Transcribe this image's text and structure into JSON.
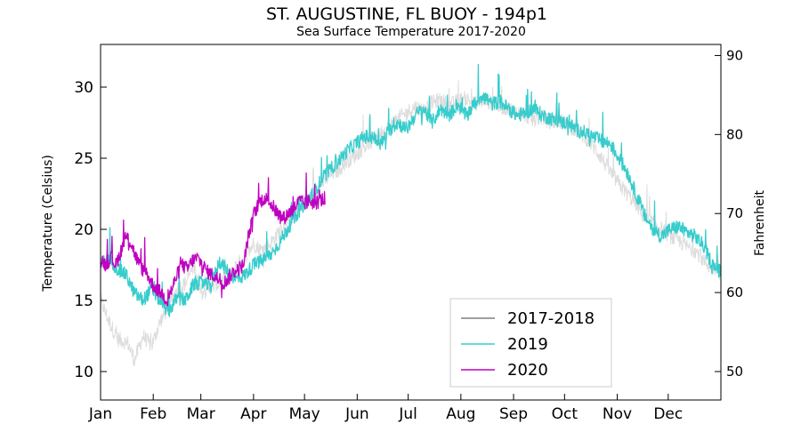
{
  "chart_data": {
    "type": "line",
    "title": "ST. AUGUSTINE, FL BUOY - 194p1",
    "subtitle": "Sea Surface Temperature 2017-2020",
    "ylabel": "Temperature (Celsius)",
    "ylabel_right": "Fahrenheit",
    "xlabel": "",
    "ylim": [
      8,
      33
    ],
    "y_ticks": [
      10,
      15,
      20,
      25,
      30
    ],
    "y_right_ticks": [
      50,
      60,
      70,
      80,
      90
    ],
    "x_categories": [
      "Jan",
      "Feb",
      "Mar",
      "Apr",
      "May",
      "Jun",
      "Jul",
      "Aug",
      "Sep",
      "Oct",
      "Nov",
      "Dec"
    ],
    "x_range_days": [
      0,
      365
    ],
    "legend_position": "bottom-right",
    "series": [
      {
        "name": "2017-2018",
        "color": "#dddddd",
        "legend_color": "#808080",
        "points": [
          [
            0,
            15.0
          ],
          [
            5,
            13.5
          ],
          [
            10,
            12.3
          ],
          [
            16,
            12.0
          ],
          [
            20,
            10.8
          ],
          [
            25,
            12.5
          ],
          [
            30,
            11.8
          ],
          [
            35,
            13.5
          ],
          [
            40,
            14.5
          ],
          [
            45,
            15.8
          ],
          [
            50,
            16.2
          ],
          [
            55,
            17.5
          ],
          [
            60,
            15.5
          ],
          [
            65,
            16.0
          ],
          [
            70,
            16.2
          ],
          [
            75,
            16.5
          ],
          [
            80,
            17.5
          ],
          [
            85,
            18.0
          ],
          [
            90,
            19.0
          ],
          [
            95,
            18.5
          ],
          [
            100,
            19.0
          ],
          [
            105,
            19.8
          ],
          [
            110,
            20.5
          ],
          [
            115,
            21.0
          ],
          [
            120,
            21.8
          ],
          [
            125,
            22.5
          ],
          [
            130,
            23.2
          ],
          [
            135,
            23.8
          ],
          [
            140,
            24.2
          ],
          [
            145,
            24.8
          ],
          [
            150,
            25.2
          ],
          [
            155,
            25.8
          ],
          [
            160,
            26.2
          ],
          [
            165,
            26.8
          ],
          [
            170,
            27.2
          ],
          [
            175,
            27.8
          ],
          [
            180,
            28.2
          ],
          [
            185,
            28.6
          ],
          [
            190,
            28.4
          ],
          [
            195,
            28.9
          ],
          [
            200,
            29.1
          ],
          [
            205,
            28.7
          ],
          [
            210,
            29.0
          ],
          [
            215,
            29.2
          ],
          [
            220,
            28.8
          ],
          [
            225,
            29.1
          ],
          [
            230,
            28.9
          ],
          [
            235,
            28.6
          ],
          [
            240,
            28.5
          ],
          [
            245,
            28.2
          ],
          [
            250,
            28.0
          ],
          [
            255,
            27.7
          ],
          [
            260,
            27.9
          ],
          [
            265,
            27.5
          ],
          [
            270,
            27.7
          ],
          [
            275,
            27.3
          ],
          [
            280,
            27.0
          ],
          [
            285,
            26.5
          ],
          [
            290,
            25.8
          ],
          [
            295,
            25.0
          ],
          [
            300,
            24.0
          ],
          [
            305,
            23.2
          ],
          [
            310,
            22.5
          ],
          [
            315,
            21.8
          ],
          [
            320,
            20.8
          ],
          [
            325,
            20.5
          ],
          [
            330,
            20.0
          ],
          [
            335,
            19.5
          ],
          [
            340,
            19.2
          ],
          [
            345,
            18.8
          ],
          [
            350,
            18.5
          ],
          [
            355,
            17.8
          ],
          [
            360,
            17.2
          ],
          [
            365,
            17.0
          ]
        ]
      },
      {
        "name": "2019",
        "color": "#38cccc",
        "legend_color": "#38cccc",
        "points": [
          [
            0,
            17.5
          ],
          [
            5,
            18.0
          ],
          [
            10,
            17.2
          ],
          [
            15,
            16.8
          ],
          [
            20,
            15.5
          ],
          [
            25,
            15.0
          ],
          [
            30,
            15.8
          ],
          [
            35,
            15.0
          ],
          [
            40,
            14.2
          ],
          [
            45,
            15.2
          ],
          [
            50,
            15.0
          ],
          [
            55,
            16.2
          ],
          [
            60,
            16.2
          ],
          [
            65,
            16.0
          ],
          [
            70,
            17.8
          ],
          [
            75,
            17.0
          ],
          [
            80,
            16.5
          ],
          [
            85,
            16.8
          ],
          [
            90,
            17.5
          ],
          [
            95,
            17.8
          ],
          [
            100,
            18.2
          ],
          [
            105,
            19.0
          ],
          [
            110,
            20.0
          ],
          [
            115,
            21.0
          ],
          [
            120,
            21.8
          ],
          [
            125,
            22.5
          ],
          [
            130,
            23.5
          ],
          [
            135,
            24.2
          ],
          [
            140,
            24.8
          ],
          [
            145,
            25.5
          ],
          [
            150,
            26.0
          ],
          [
            155,
            26.5
          ],
          [
            160,
            26.5
          ],
          [
            165,
            26.0
          ],
          [
            170,
            27.0
          ],
          [
            175,
            27.5
          ],
          [
            180,
            27.0
          ],
          [
            185,
            28.0
          ],
          [
            190,
            28.5
          ],
          [
            195,
            27.5
          ],
          [
            200,
            28.5
          ],
          [
            205,
            28.0
          ],
          [
            210,
            28.8
          ],
          [
            215,
            28.0
          ],
          [
            220,
            28.8
          ],
          [
            225,
            29.5
          ],
          [
            230,
            28.8
          ],
          [
            235,
            29.0
          ],
          [
            240,
            28.5
          ],
          [
            245,
            28.0
          ],
          [
            250,
            28.2
          ],
          [
            255,
            28.5
          ],
          [
            260,
            28.0
          ],
          [
            265,
            27.8
          ],
          [
            270,
            27.5
          ],
          [
            275,
            27.5
          ],
          [
            280,
            27.0
          ],
          [
            285,
            26.8
          ],
          [
            290,
            26.5
          ],
          [
            295,
            26.2
          ],
          [
            300,
            26.0
          ],
          [
            305,
            25.0
          ],
          [
            310,
            24.0
          ],
          [
            315,
            22.5
          ],
          [
            320,
            21.0
          ],
          [
            325,
            20.0
          ],
          [
            330,
            19.5
          ],
          [
            335,
            20.0
          ],
          [
            340,
            20.2
          ],
          [
            345,
            19.8
          ],
          [
            350,
            19.5
          ],
          [
            355,
            18.8
          ],
          [
            360,
            17.5
          ],
          [
            365,
            17.0
          ]
        ]
      },
      {
        "name": "2020",
        "color": "#c000c0",
        "legend_color": "#c000c0",
        "points": [
          [
            0,
            18.0
          ],
          [
            3,
            17.5
          ],
          [
            6,
            18.0
          ],
          [
            9,
            17.5
          ],
          [
            12,
            18.5
          ],
          [
            15,
            19.5
          ],
          [
            18,
            19.0
          ],
          [
            21,
            18.0
          ],
          [
            24,
            17.2
          ],
          [
            27,
            17.0
          ],
          [
            30,
            16.2
          ],
          [
            33,
            15.8
          ],
          [
            36,
            15.5
          ],
          [
            39,
            15.0
          ],
          [
            42,
            15.8
          ],
          [
            45,
            16.8
          ],
          [
            48,
            17.5
          ],
          [
            51,
            17.2
          ],
          [
            54,
            17.8
          ],
          [
            57,
            18.0
          ],
          [
            60,
            17.5
          ],
          [
            63,
            17.0
          ],
          [
            66,
            16.8
          ],
          [
            69,
            16.5
          ],
          [
            72,
            16.2
          ],
          [
            75,
            16.5
          ],
          [
            78,
            17.0
          ],
          [
            81,
            17.2
          ],
          [
            84,
            17.5
          ],
          [
            87,
            19.5
          ],
          [
            90,
            21.0
          ],
          [
            93,
            21.8
          ],
          [
            96,
            22.2
          ],
          [
            99,
            22.0
          ],
          [
            102,
            21.5
          ],
          [
            105,
            21.0
          ],
          [
            108,
            20.8
          ],
          [
            111,
            21.2
          ],
          [
            114,
            21.5
          ],
          [
            117,
            22.0
          ],
          [
            120,
            21.8
          ],
          [
            123,
            22.0
          ],
          [
            126,
            21.8
          ],
          [
            129,
            22.0
          ],
          [
            132,
            22.2
          ]
        ]
      }
    ]
  }
}
